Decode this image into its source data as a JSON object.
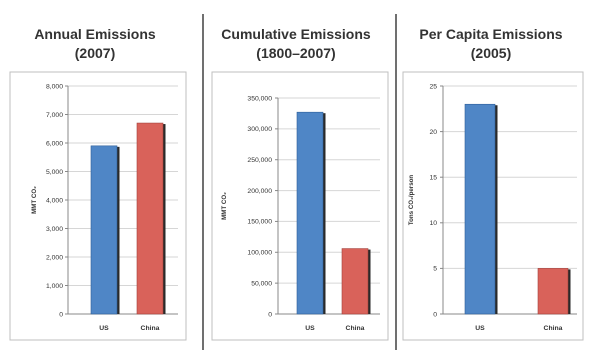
{
  "chart_data": [
    {
      "type": "bar",
      "title_lines": [
        "Annual Emissions",
        "(2007)"
      ],
      "ylabel": "MMT CO₂",
      "categories": [
        "US",
        "China"
      ],
      "values": [
        5900,
        6700
      ],
      "ylim": [
        0,
        8000
      ],
      "yticks": [
        0,
        1000,
        2000,
        3000,
        4000,
        5000,
        6000,
        7000,
        8000
      ],
      "ytick_labels": [
        "0",
        "1,000",
        "2,000",
        "3,000",
        "4,000",
        "5,000",
        "6,000",
        "7,000",
        "8,000"
      ],
      "grid": true
    },
    {
      "type": "bar",
      "title_lines": [
        "Cumulative Emissions",
        "(1800–2007)"
      ],
      "ylabel": "MMT CO₂",
      "categories": [
        "US",
        "China"
      ],
      "values": [
        327000,
        106000
      ],
      "ylim": [
        0,
        350000
      ],
      "yticks": [
        0,
        50000,
        100000,
        150000,
        200000,
        250000,
        300000,
        350000
      ],
      "ytick_labels": [
        "0",
        "50,000",
        "100,000",
        "150,000",
        "200,000",
        "250,000",
        "300,000",
        "350,000"
      ],
      "grid": true
    },
    {
      "type": "bar",
      "title_lines": [
        "Per Capita Emissions",
        "(2005)"
      ],
      "ylabel": "Tons CO₂/person",
      "categories": [
        "US",
        "China"
      ],
      "values": [
        23,
        5
      ],
      "ylim": [
        0,
        25
      ],
      "yticks": [
        0,
        5,
        10,
        15,
        20,
        25
      ],
      "ytick_labels": [
        "0",
        "5",
        "10",
        "15",
        "20",
        "25"
      ],
      "grid": true
    }
  ],
  "colors": {
    "us_bar": "#4f86c6",
    "us_bar_edge": "#2f5f99",
    "china_bar": "#d9625a",
    "china_bar_edge": "#a3403a",
    "bar_shadow": "#2a2a2a"
  }
}
